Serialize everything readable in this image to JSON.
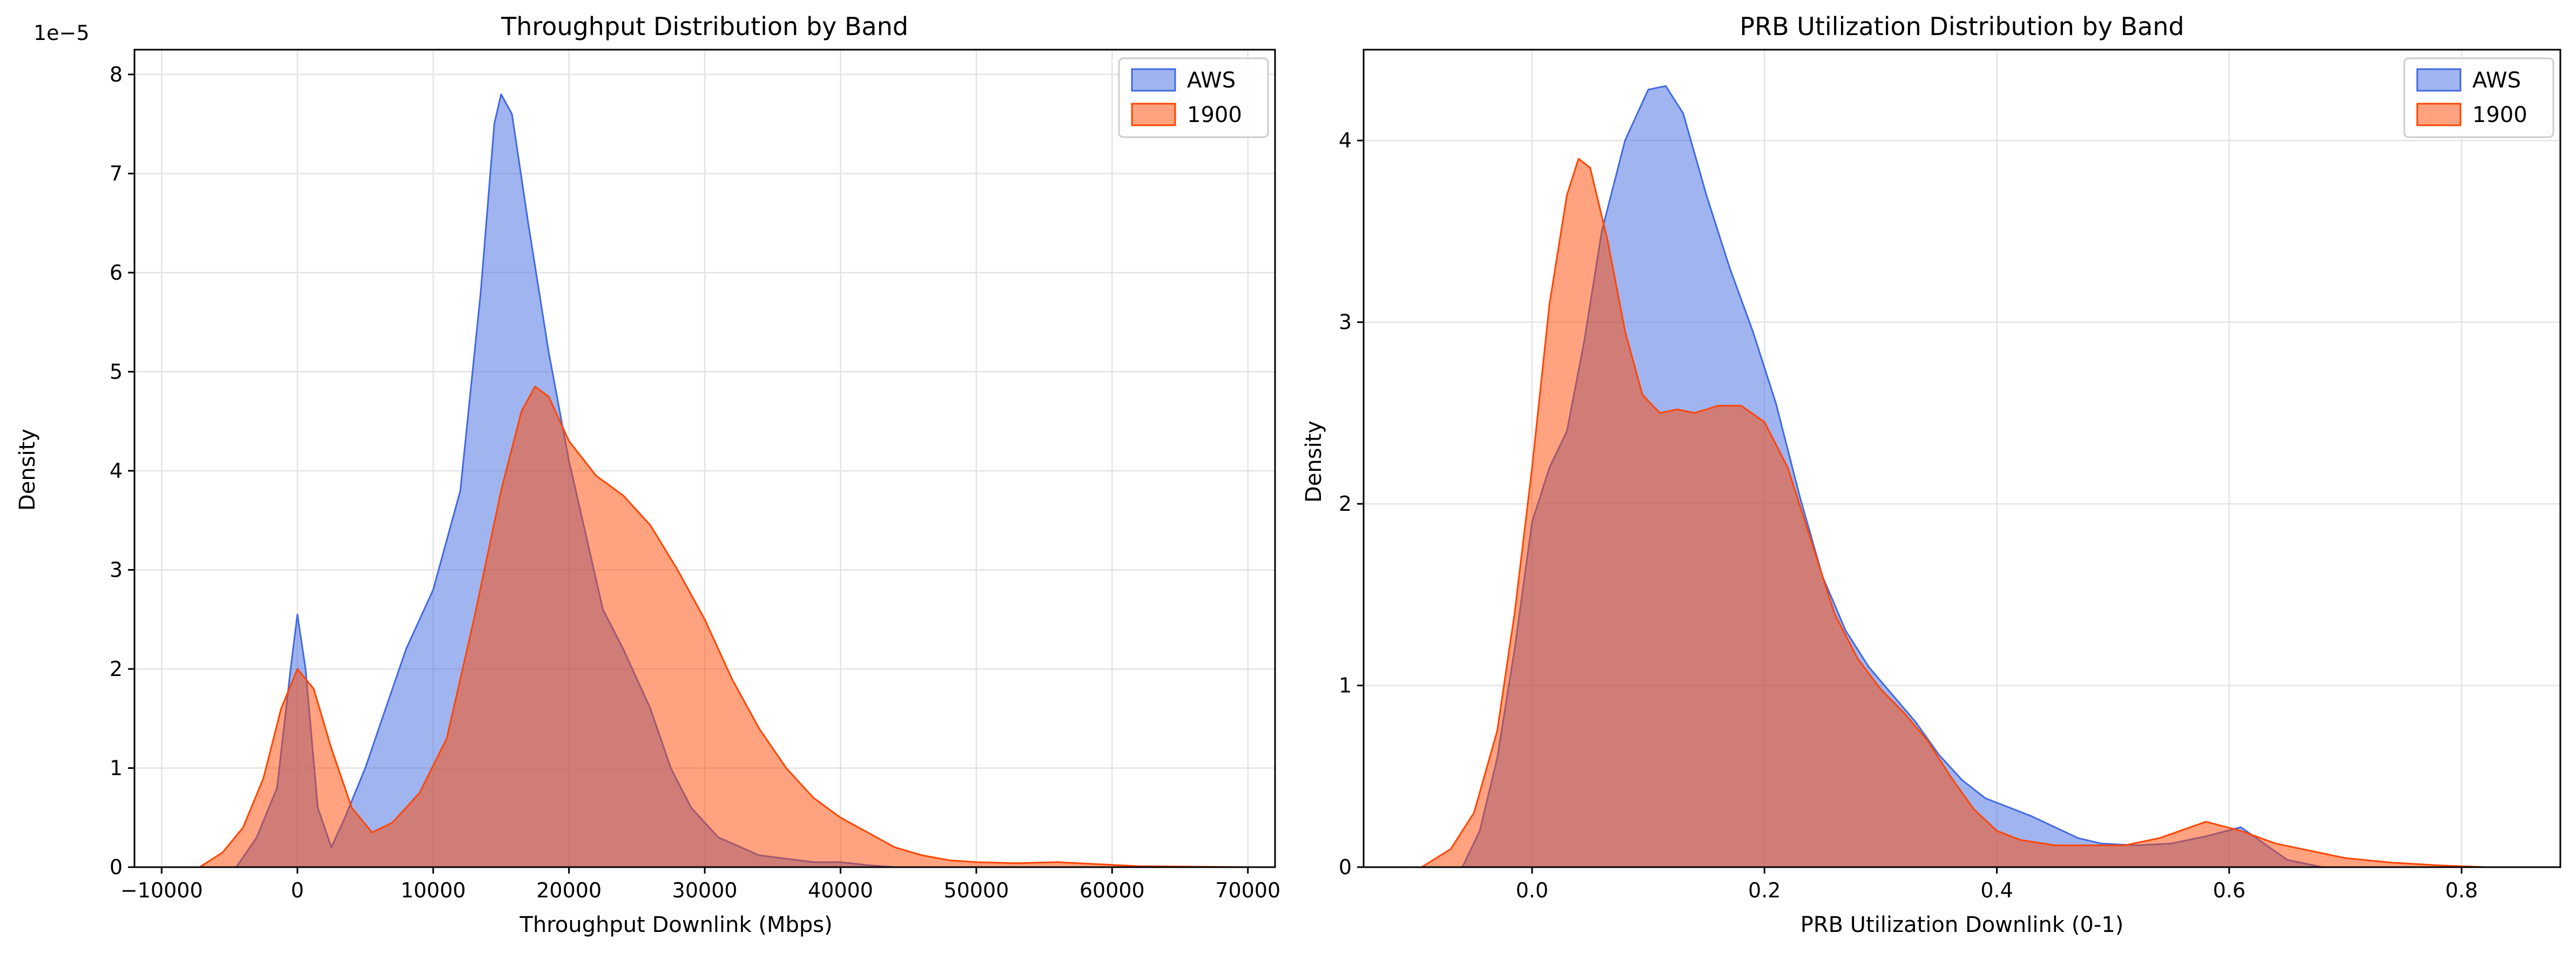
{
  "chart_data": [
    {
      "type": "area",
      "subtype": "kde",
      "title": "Throughput Distribution by Band",
      "xlabel": "Throughput Downlink (Mbps)",
      "ylabel": "Density",
      "offset_label": "1e−5",
      "xlim": [
        -12000,
        72000
      ],
      "ylim": [
        0,
        8.25e-05
      ],
      "x_ticks": [
        -10000,
        0,
        10000,
        20000,
        30000,
        40000,
        50000,
        60000,
        70000
      ],
      "x_tick_labels": [
        "−10000",
        "0",
        "10000",
        "20000",
        "30000",
        "40000",
        "50000",
        "60000",
        "70000"
      ],
      "y_ticks": [
        0,
        1e-05,
        2e-05,
        3e-05,
        4e-05,
        5e-05,
        6e-05,
        7e-05,
        8e-05
      ],
      "y_tick_labels": [
        "0",
        "1",
        "2",
        "3",
        "4",
        "5",
        "6",
        "7",
        "8"
      ],
      "grid": true,
      "legend_position": "top-right",
      "series": [
        {
          "name": "AWS",
          "fill": "#4169e1",
          "stroke": "#4169e1",
          "points": [
            [
              -4500,
              0
            ],
            [
              -3000,
              3e-06
            ],
            [
              -1500,
              8e-06
            ],
            [
              -500,
              2e-05
            ],
            [
              0,
              2.55e-05
            ],
            [
              600,
              2e-05
            ],
            [
              1500,
              6e-06
            ],
            [
              2500,
              2e-06
            ],
            [
              3500,
              5e-06
            ],
            [
              5000,
              1e-05
            ],
            [
              6500,
              1.6e-05
            ],
            [
              8000,
              2.2e-05
            ],
            [
              10000,
              2.8e-05
            ],
            [
              12000,
              3.8e-05
            ],
            [
              13500,
              5.8e-05
            ],
            [
              14500,
              7.5e-05
            ],
            [
              15000,
              7.8e-05
            ],
            [
              15800,
              7.6e-05
            ],
            [
              17000,
              6.5e-05
            ],
            [
              18500,
              5.2e-05
            ],
            [
              20000,
              4.1e-05
            ],
            [
              21500,
              3.2e-05
            ],
            [
              22500,
              2.6e-05
            ],
            [
              24000,
              2.2e-05
            ],
            [
              26000,
              1.6e-05
            ],
            [
              27500,
              1e-05
            ],
            [
              29000,
              6e-06
            ],
            [
              31000,
              3e-06
            ],
            [
              34000,
              1.2e-06
            ],
            [
              38000,
              5e-07
            ],
            [
              40000,
              5e-07
            ],
            [
              42000,
              2e-07
            ],
            [
              44000,
              0
            ]
          ]
        },
        {
          "name": "1900",
          "fill": "#ff4500",
          "stroke": "#ff4500",
          "points": [
            [
              -7200,
              0
            ],
            [
              -5500,
              1.5e-06
            ],
            [
              -4000,
              4e-06
            ],
            [
              -2500,
              9e-06
            ],
            [
              -1200,
              1.6e-05
            ],
            [
              0,
              2e-05
            ],
            [
              1200,
              1.8e-05
            ],
            [
              2500,
              1.2e-05
            ],
            [
              4000,
              6e-06
            ],
            [
              5500,
              3.5e-06
            ],
            [
              7000,
              4.5e-06
            ],
            [
              9000,
              7.5e-06
            ],
            [
              11000,
              1.3e-05
            ],
            [
              13000,
              2.5e-05
            ],
            [
              15000,
              3.8e-05
            ],
            [
              16500,
              4.6e-05
            ],
            [
              17500,
              4.85e-05
            ],
            [
              18500,
              4.75e-05
            ],
            [
              20000,
              4.3e-05
            ],
            [
              22000,
              3.95e-05
            ],
            [
              24000,
              3.75e-05
            ],
            [
              26000,
              3.45e-05
            ],
            [
              28000,
              3e-05
            ],
            [
              30000,
              2.5e-05
            ],
            [
              32000,
              1.9e-05
            ],
            [
              34000,
              1.4e-05
            ],
            [
              36000,
              1e-05
            ],
            [
              38000,
              7e-06
            ],
            [
              40000,
              5e-06
            ],
            [
              42000,
              3.5e-06
            ],
            [
              44000,
              2e-06
            ],
            [
              46000,
              1.2e-06
            ],
            [
              48000,
              7e-07
            ],
            [
              50000,
              5e-07
            ],
            [
              53000,
              4e-07
            ],
            [
              56000,
              5e-07
            ],
            [
              59000,
              3e-07
            ],
            [
              62000,
              1e-07
            ],
            [
              66000,
              5e-08
            ],
            [
              70000,
              0
            ]
          ]
        }
      ]
    },
    {
      "type": "area",
      "subtype": "kde",
      "title": "PRB Utilization Distribution by Band",
      "xlabel": "PRB Utilization Downlink (0-1)",
      "ylabel": "Density",
      "xlim": [
        -0.145,
        0.885
      ],
      "ylim": [
        0,
        4.5
      ],
      "x_ticks": [
        0.0,
        0.2,
        0.4,
        0.6,
        0.8
      ],
      "x_tick_labels": [
        "0.0",
        "0.2",
        "0.4",
        "0.6",
        "0.8"
      ],
      "y_ticks": [
        0,
        1,
        2,
        3,
        4
      ],
      "y_tick_labels": [
        "0",
        "1",
        "2",
        "3",
        "4"
      ],
      "grid": true,
      "legend_position": "top-right",
      "series": [
        {
          "name": "AWS",
          "fill": "#4169e1",
          "stroke": "#4169e1",
          "points": [
            [
              -0.06,
              0
            ],
            [
              -0.045,
              0.2
            ],
            [
              -0.03,
              0.6
            ],
            [
              -0.015,
              1.2
            ],
            [
              0.0,
              1.9
            ],
            [
              0.015,
              2.2
            ],
            [
              0.03,
              2.4
            ],
            [
              0.045,
              2.9
            ],
            [
              0.06,
              3.5
            ],
            [
              0.08,
              4.0
            ],
            [
              0.1,
              4.28
            ],
            [
              0.115,
              4.3
            ],
            [
              0.13,
              4.15
            ],
            [
              0.15,
              3.7
            ],
            [
              0.17,
              3.3
            ],
            [
              0.19,
              2.95
            ],
            [
              0.21,
              2.55
            ],
            [
              0.23,
              2.05
            ],
            [
              0.25,
              1.6
            ],
            [
              0.27,
              1.3
            ],
            [
              0.29,
              1.1
            ],
            [
              0.31,
              0.95
            ],
            [
              0.33,
              0.8
            ],
            [
              0.35,
              0.62
            ],
            [
              0.37,
              0.48
            ],
            [
              0.39,
              0.38
            ],
            [
              0.41,
              0.33
            ],
            [
              0.43,
              0.28
            ],
            [
              0.45,
              0.22
            ],
            [
              0.47,
              0.16
            ],
            [
              0.49,
              0.13
            ],
            [
              0.52,
              0.12
            ],
            [
              0.55,
              0.13
            ],
            [
              0.58,
              0.17
            ],
            [
              0.61,
              0.22
            ],
            [
              0.63,
              0.13
            ],
            [
              0.65,
              0.04
            ],
            [
              0.68,
              0
            ]
          ]
        },
        {
          "name": "1900",
          "fill": "#ff4500",
          "stroke": "#ff4500",
          "points": [
            [
              -0.095,
              0
            ],
            [
              -0.07,
              0.1
            ],
            [
              -0.05,
              0.3
            ],
            [
              -0.03,
              0.75
            ],
            [
              -0.015,
              1.4
            ],
            [
              0.0,
              2.2
            ],
            [
              0.015,
              3.1
            ],
            [
              0.03,
              3.7
            ],
            [
              0.04,
              3.9
            ],
            [
              0.05,
              3.85
            ],
            [
              0.065,
              3.45
            ],
            [
              0.08,
              2.95
            ],
            [
              0.095,
              2.6
            ],
            [
              0.11,
              2.5
            ],
            [
              0.125,
              2.52
            ],
            [
              0.14,
              2.5
            ],
            [
              0.16,
              2.54
            ],
            [
              0.18,
              2.54
            ],
            [
              0.2,
              2.45
            ],
            [
              0.22,
              2.2
            ],
            [
              0.24,
              1.8
            ],
            [
              0.26,
              1.4
            ],
            [
              0.28,
              1.15
            ],
            [
              0.3,
              0.98
            ],
            [
              0.32,
              0.85
            ],
            [
              0.34,
              0.7
            ],
            [
              0.36,
              0.5
            ],
            [
              0.38,
              0.32
            ],
            [
              0.4,
              0.2
            ],
            [
              0.42,
              0.15
            ],
            [
              0.45,
              0.12
            ],
            [
              0.48,
              0.12
            ],
            [
              0.51,
              0.12
            ],
            [
              0.54,
              0.16
            ],
            [
              0.58,
              0.25
            ],
            [
              0.61,
              0.2
            ],
            [
              0.64,
              0.13
            ],
            [
              0.67,
              0.09
            ],
            [
              0.7,
              0.05
            ],
            [
              0.74,
              0.025
            ],
            [
              0.78,
              0.01
            ],
            [
              0.82,
              0
            ]
          ]
        }
      ]
    }
  ]
}
